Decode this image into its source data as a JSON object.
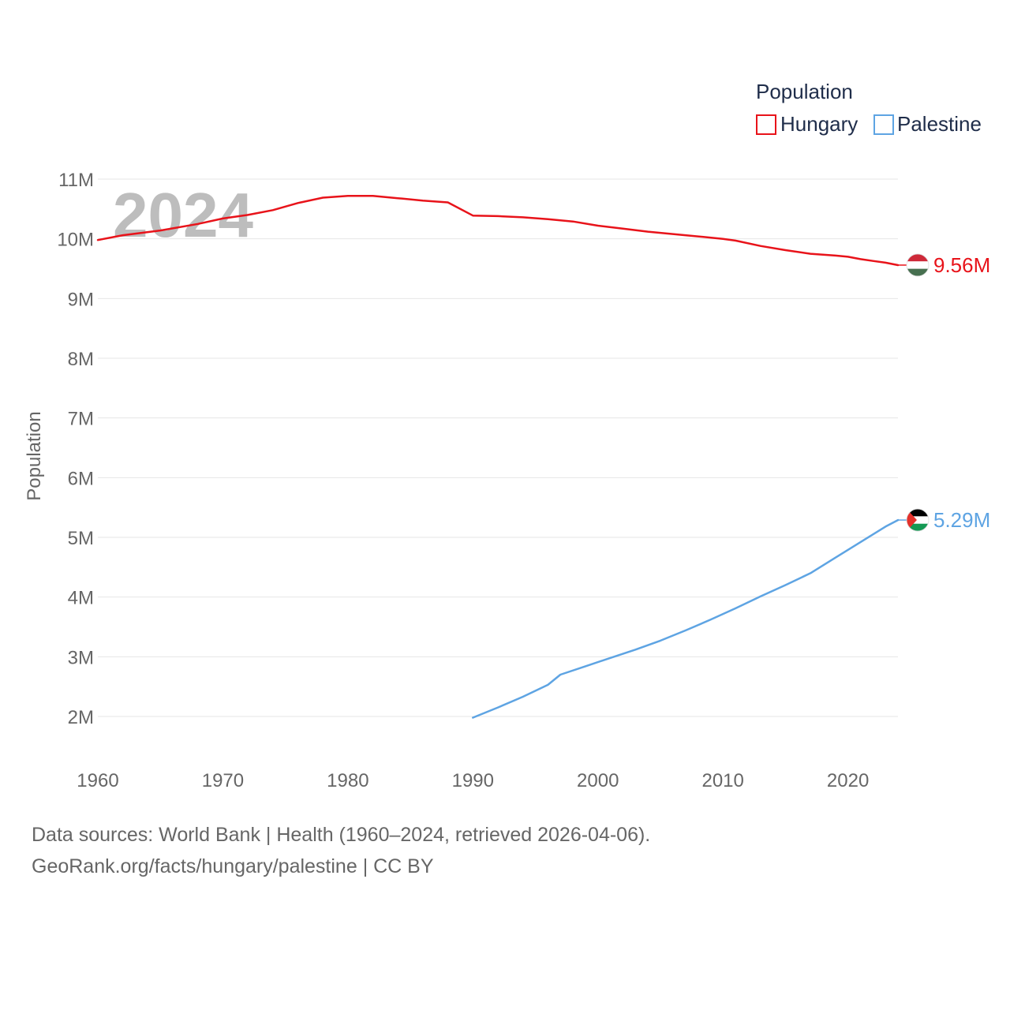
{
  "chart_data": {
    "type": "line",
    "title": "",
    "ylabel": "Population",
    "xlabel": "",
    "watermark_year": "2024",
    "x_ticks": [
      1960,
      1970,
      1980,
      1990,
      2000,
      2010,
      2020
    ],
    "y_ticks": [
      {
        "value": 2000000,
        "label": "2M"
      },
      {
        "value": 3000000,
        "label": "3M"
      },
      {
        "value": 4000000,
        "label": "4M"
      },
      {
        "value": 5000000,
        "label": "5M"
      },
      {
        "value": 6000000,
        "label": "6M"
      },
      {
        "value": 7000000,
        "label": "7M"
      },
      {
        "value": 8000000,
        "label": "8M"
      },
      {
        "value": 9000000,
        "label": "9M"
      },
      {
        "value": 10000000,
        "label": "10M"
      },
      {
        "value": 11000000,
        "label": "11M"
      }
    ],
    "xlim": [
      1960,
      2024
    ],
    "ylim": [
      1200000,
      11300000
    ],
    "legend": {
      "title": "Population",
      "position": "top-right",
      "entries": [
        "Hungary",
        "Palestine"
      ]
    },
    "series": [
      {
        "name": "Hungary",
        "color": "#e8131a",
        "end_label": "9.56M",
        "flag": "hungary-flag",
        "points": [
          [
            1960,
            9980000
          ],
          [
            1962,
            10060000
          ],
          [
            1965,
            10140000
          ],
          [
            1968,
            10250000
          ],
          [
            1970,
            10340000
          ],
          [
            1972,
            10400000
          ],
          [
            1974,
            10480000
          ],
          [
            1976,
            10600000
          ],
          [
            1978,
            10690000
          ],
          [
            1980,
            10720000
          ],
          [
            1982,
            10720000
          ],
          [
            1984,
            10680000
          ],
          [
            1986,
            10640000
          ],
          [
            1988,
            10610000
          ],
          [
            1990,
            10390000
          ],
          [
            1992,
            10380000
          ],
          [
            1994,
            10360000
          ],
          [
            1996,
            10330000
          ],
          [
            1998,
            10290000
          ],
          [
            2000,
            10220000
          ],
          [
            2002,
            10170000
          ],
          [
            2004,
            10120000
          ],
          [
            2006,
            10080000
          ],
          [
            2008,
            10040000
          ],
          [
            2010,
            10000000
          ],
          [
            2011,
            9970000
          ],
          [
            2013,
            9880000
          ],
          [
            2015,
            9810000
          ],
          [
            2017,
            9750000
          ],
          [
            2019,
            9720000
          ],
          [
            2020,
            9700000
          ],
          [
            2021,
            9660000
          ],
          [
            2022,
            9630000
          ],
          [
            2023,
            9600000
          ],
          [
            2024,
            9560000
          ]
        ]
      },
      {
        "name": "Palestine",
        "color": "#5ea4e3",
        "end_label": "5.29M",
        "flag": "palestine-flag",
        "points": [
          [
            1990,
            1980000
          ],
          [
            1992,
            2150000
          ],
          [
            1994,
            2330000
          ],
          [
            1996,
            2530000
          ],
          [
            1997,
            2700000
          ],
          [
            1999,
            2840000
          ],
          [
            2001,
            2980000
          ],
          [
            2003,
            3120000
          ],
          [
            2005,
            3270000
          ],
          [
            2007,
            3440000
          ],
          [
            2009,
            3620000
          ],
          [
            2011,
            3810000
          ],
          [
            2013,
            4010000
          ],
          [
            2015,
            4200000
          ],
          [
            2017,
            4400000
          ],
          [
            2019,
            4660000
          ],
          [
            2021,
            4920000
          ],
          [
            2023,
            5180000
          ],
          [
            2024,
            5290000
          ]
        ]
      }
    ]
  },
  "footer": {
    "source": "Data sources: World Bank | Health (1960–2024, retrieved 2026-04-06).",
    "site": "GeoRank.org/facts/hungary/palestine | CC BY"
  }
}
